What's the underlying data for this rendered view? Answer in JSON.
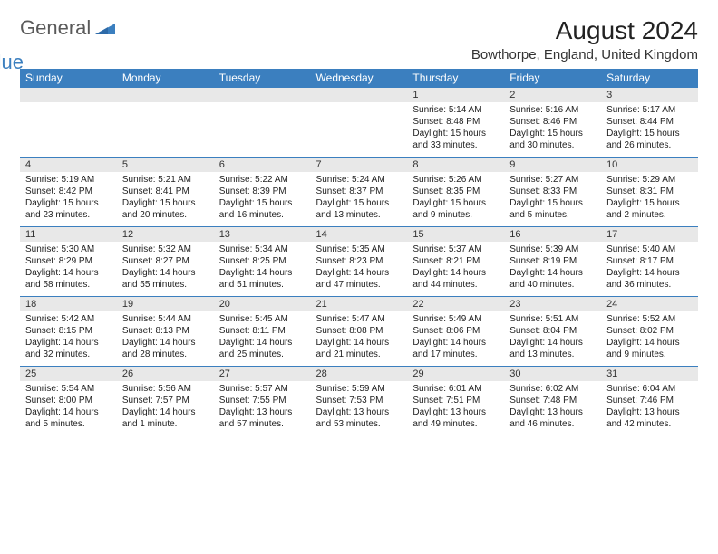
{
  "logo": {
    "text1": "General",
    "text2": "Blue",
    "shape_color": "#3b7fbf"
  },
  "title": "August 2024",
  "location": "Bowthorpe, England, United Kingdom",
  "colors": {
    "header_bg": "#3b7fbf",
    "header_fg": "#ffffff",
    "daynum_bg": "#e8e8e8",
    "grid_line": "#3b7fbf",
    "text": "#222222"
  },
  "fonts": {
    "title_pt": 28,
    "location_pt": 15,
    "dayhead_pt": 12,
    "body_pt": 10
  },
  "day_headers": [
    "Sunday",
    "Monday",
    "Tuesday",
    "Wednesday",
    "Thursday",
    "Friday",
    "Saturday"
  ],
  "weeks": [
    [
      null,
      null,
      null,
      null,
      {
        "n": "1",
        "sunrise": "Sunrise: 5:14 AM",
        "sunset": "Sunset: 8:48 PM",
        "daylight": "Daylight: 15 hours and 33 minutes."
      },
      {
        "n": "2",
        "sunrise": "Sunrise: 5:16 AM",
        "sunset": "Sunset: 8:46 PM",
        "daylight": "Daylight: 15 hours and 30 minutes."
      },
      {
        "n": "3",
        "sunrise": "Sunrise: 5:17 AM",
        "sunset": "Sunset: 8:44 PM",
        "daylight": "Daylight: 15 hours and 26 minutes."
      }
    ],
    [
      {
        "n": "4",
        "sunrise": "Sunrise: 5:19 AM",
        "sunset": "Sunset: 8:42 PM",
        "daylight": "Daylight: 15 hours and 23 minutes."
      },
      {
        "n": "5",
        "sunrise": "Sunrise: 5:21 AM",
        "sunset": "Sunset: 8:41 PM",
        "daylight": "Daylight: 15 hours and 20 minutes."
      },
      {
        "n": "6",
        "sunrise": "Sunrise: 5:22 AM",
        "sunset": "Sunset: 8:39 PM",
        "daylight": "Daylight: 15 hours and 16 minutes."
      },
      {
        "n": "7",
        "sunrise": "Sunrise: 5:24 AM",
        "sunset": "Sunset: 8:37 PM",
        "daylight": "Daylight: 15 hours and 13 minutes."
      },
      {
        "n": "8",
        "sunrise": "Sunrise: 5:26 AM",
        "sunset": "Sunset: 8:35 PM",
        "daylight": "Daylight: 15 hours and 9 minutes."
      },
      {
        "n": "9",
        "sunrise": "Sunrise: 5:27 AM",
        "sunset": "Sunset: 8:33 PM",
        "daylight": "Daylight: 15 hours and 5 minutes."
      },
      {
        "n": "10",
        "sunrise": "Sunrise: 5:29 AM",
        "sunset": "Sunset: 8:31 PM",
        "daylight": "Daylight: 15 hours and 2 minutes."
      }
    ],
    [
      {
        "n": "11",
        "sunrise": "Sunrise: 5:30 AM",
        "sunset": "Sunset: 8:29 PM",
        "daylight": "Daylight: 14 hours and 58 minutes."
      },
      {
        "n": "12",
        "sunrise": "Sunrise: 5:32 AM",
        "sunset": "Sunset: 8:27 PM",
        "daylight": "Daylight: 14 hours and 55 minutes."
      },
      {
        "n": "13",
        "sunrise": "Sunrise: 5:34 AM",
        "sunset": "Sunset: 8:25 PM",
        "daylight": "Daylight: 14 hours and 51 minutes."
      },
      {
        "n": "14",
        "sunrise": "Sunrise: 5:35 AM",
        "sunset": "Sunset: 8:23 PM",
        "daylight": "Daylight: 14 hours and 47 minutes."
      },
      {
        "n": "15",
        "sunrise": "Sunrise: 5:37 AM",
        "sunset": "Sunset: 8:21 PM",
        "daylight": "Daylight: 14 hours and 44 minutes."
      },
      {
        "n": "16",
        "sunrise": "Sunrise: 5:39 AM",
        "sunset": "Sunset: 8:19 PM",
        "daylight": "Daylight: 14 hours and 40 minutes."
      },
      {
        "n": "17",
        "sunrise": "Sunrise: 5:40 AM",
        "sunset": "Sunset: 8:17 PM",
        "daylight": "Daylight: 14 hours and 36 minutes."
      }
    ],
    [
      {
        "n": "18",
        "sunrise": "Sunrise: 5:42 AM",
        "sunset": "Sunset: 8:15 PM",
        "daylight": "Daylight: 14 hours and 32 minutes."
      },
      {
        "n": "19",
        "sunrise": "Sunrise: 5:44 AM",
        "sunset": "Sunset: 8:13 PM",
        "daylight": "Daylight: 14 hours and 28 minutes."
      },
      {
        "n": "20",
        "sunrise": "Sunrise: 5:45 AM",
        "sunset": "Sunset: 8:11 PM",
        "daylight": "Daylight: 14 hours and 25 minutes."
      },
      {
        "n": "21",
        "sunrise": "Sunrise: 5:47 AM",
        "sunset": "Sunset: 8:08 PM",
        "daylight": "Daylight: 14 hours and 21 minutes."
      },
      {
        "n": "22",
        "sunrise": "Sunrise: 5:49 AM",
        "sunset": "Sunset: 8:06 PM",
        "daylight": "Daylight: 14 hours and 17 minutes."
      },
      {
        "n": "23",
        "sunrise": "Sunrise: 5:51 AM",
        "sunset": "Sunset: 8:04 PM",
        "daylight": "Daylight: 14 hours and 13 minutes."
      },
      {
        "n": "24",
        "sunrise": "Sunrise: 5:52 AM",
        "sunset": "Sunset: 8:02 PM",
        "daylight": "Daylight: 14 hours and 9 minutes."
      }
    ],
    [
      {
        "n": "25",
        "sunrise": "Sunrise: 5:54 AM",
        "sunset": "Sunset: 8:00 PM",
        "daylight": "Daylight: 14 hours and 5 minutes."
      },
      {
        "n": "26",
        "sunrise": "Sunrise: 5:56 AM",
        "sunset": "Sunset: 7:57 PM",
        "daylight": "Daylight: 14 hours and 1 minute."
      },
      {
        "n": "27",
        "sunrise": "Sunrise: 5:57 AM",
        "sunset": "Sunset: 7:55 PM",
        "daylight": "Daylight: 13 hours and 57 minutes."
      },
      {
        "n": "28",
        "sunrise": "Sunrise: 5:59 AM",
        "sunset": "Sunset: 7:53 PM",
        "daylight": "Daylight: 13 hours and 53 minutes."
      },
      {
        "n": "29",
        "sunrise": "Sunrise: 6:01 AM",
        "sunset": "Sunset: 7:51 PM",
        "daylight": "Daylight: 13 hours and 49 minutes."
      },
      {
        "n": "30",
        "sunrise": "Sunrise: 6:02 AM",
        "sunset": "Sunset: 7:48 PM",
        "daylight": "Daylight: 13 hours and 46 minutes."
      },
      {
        "n": "31",
        "sunrise": "Sunrise: 6:04 AM",
        "sunset": "Sunset: 7:46 PM",
        "daylight": "Daylight: 13 hours and 42 minutes."
      }
    ]
  ]
}
